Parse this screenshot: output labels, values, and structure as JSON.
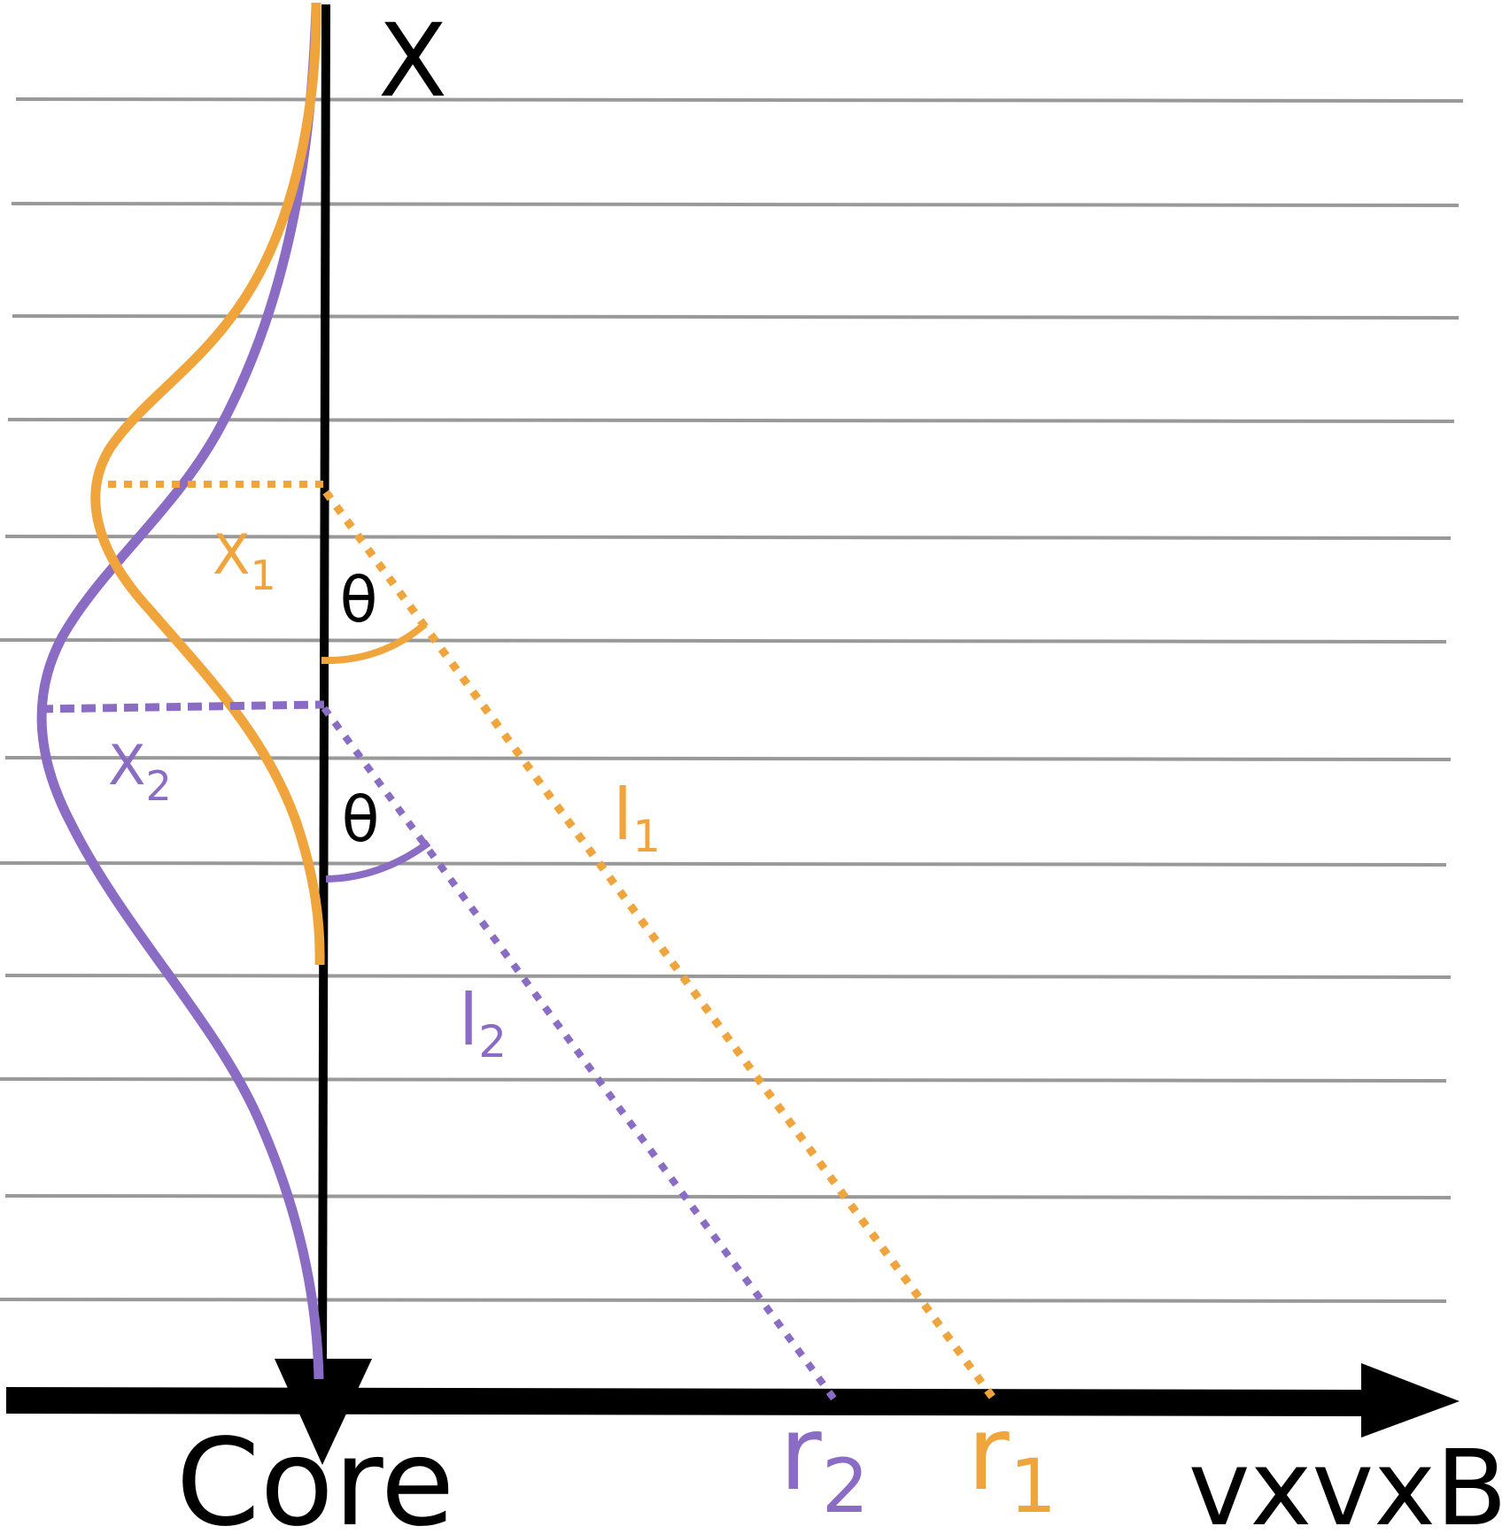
{
  "labels": {
    "vertical_axis": "X",
    "horizontal_axis": "vxvxB",
    "core": "Core",
    "x1_main": "X",
    "x1_sub": "1",
    "x2_main": "X",
    "x2_sub": "2",
    "theta_top": "θ",
    "theta_bottom": "θ",
    "l1_main": "l",
    "l1_sub": "1",
    "l2_main": "l",
    "l2_sub": "2",
    "r1_main": "r",
    "r1_sub": "1",
    "r2_main": "r",
    "r2_sub": "2"
  },
  "colors": {
    "orange": "#f0a43c",
    "purple": "#8a6cc4",
    "axis": "#000000",
    "grid": "#999999"
  }
}
